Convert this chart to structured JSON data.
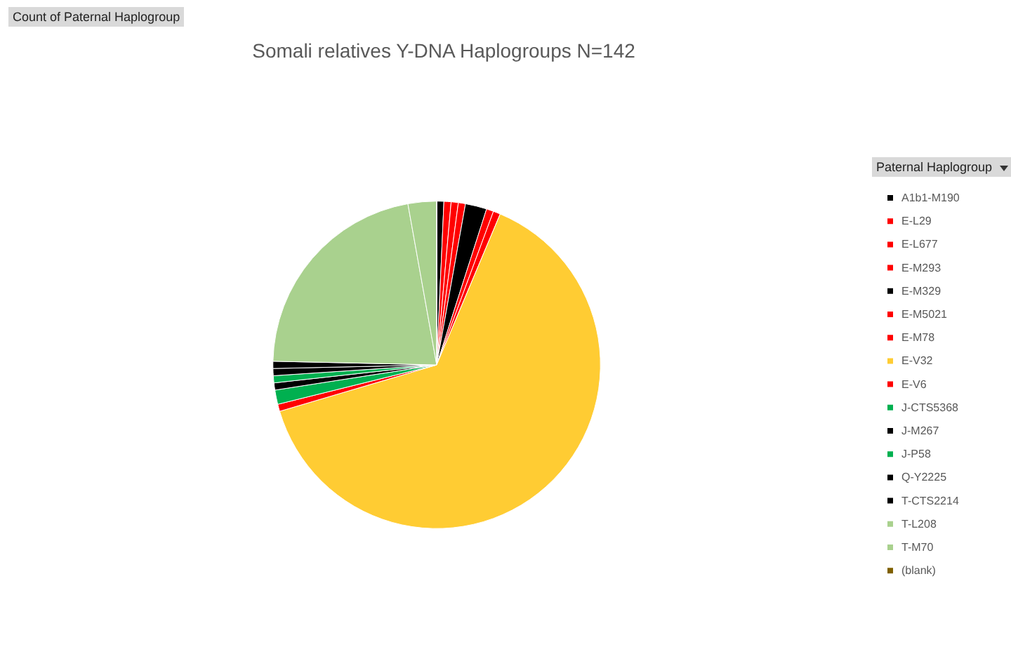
{
  "chart_data": {
    "type": "pie",
    "title": "Somali relatives Y-DNA Haplogroups N=142",
    "legend_title": "Paternal Haplogroup",
    "legend": "right",
    "annotations": [
      "Count of Paternal Haplogroup"
    ],
    "categories": [
      "A1b1-M190",
      "E-L29",
      "E-L677",
      "E-M293",
      "E-M329",
      "E-M5021",
      "E-M78",
      "E-V32",
      "E-V6",
      "J-CTS5368",
      "J-M267",
      "J-P58",
      "Q-Y2225",
      "T-CTS2214",
      "T-L208",
      "T-M70",
      "(blank)"
    ],
    "values": [
      1,
      1,
      1,
      1,
      3,
      1,
      1,
      91,
      1,
      2,
      1,
      1,
      1,
      1,
      31,
      4,
      0
    ],
    "colors": [
      "#000000",
      "#ff0000",
      "#ff0000",
      "#ff0000",
      "#000000",
      "#ff0000",
      "#ff0000",
      "#ffcc33",
      "#ff0000",
      "#00b050",
      "#000000",
      "#00b050",
      "#000000",
      "#000000",
      "#a9d18e",
      "#a9d18e",
      "#7f6000"
    ]
  }
}
